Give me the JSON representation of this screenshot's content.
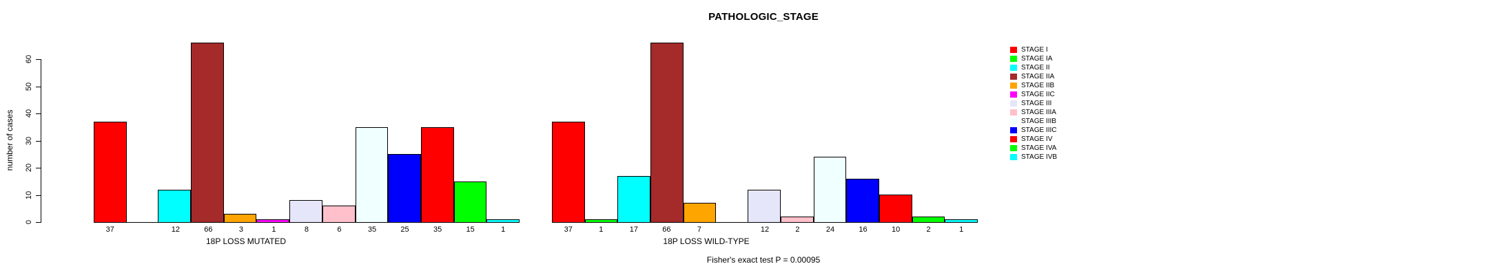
{
  "chart_data": {
    "type": "bar",
    "title": "PATHOLOGIC_STAGE",
    "ylabel": "number of cases",
    "yticks": [
      0,
      10,
      20,
      30,
      40,
      50,
      60
    ],
    "ylim": [
      0,
      66
    ],
    "grid": false,
    "legend_position": "right",
    "categories": [
      "STAGE I",
      "STAGE IA",
      "STAGE II",
      "STAGE IIA",
      "STAGE IIB",
      "STAGE IIC",
      "STAGE III",
      "STAGE IIIA",
      "STAGE IIIB",
      "STAGE IIIC",
      "STAGE IV",
      "STAGE IVA",
      "STAGE IVB"
    ],
    "colors": [
      "#FF0000",
      "#00FF00",
      "#00FFFF",
      "#A52A2A",
      "#FFA500",
      "#FF00FF",
      "#E6E6FA",
      "#FFC0CB",
      "#F0FFFF",
      "#0000FF",
      "#FF0000",
      "#00FF00",
      "#00FFFF"
    ],
    "series": [
      {
        "name": "18P LOSS MUTATED",
        "values": [
          37,
          0,
          12,
          66,
          3,
          1,
          8,
          6,
          35,
          25,
          35,
          15,
          1
        ]
      },
      {
        "name": "18P LOSS WILD-TYPE",
        "values": [
          37,
          1,
          17,
          66,
          7,
          0,
          12,
          2,
          24,
          16,
          10,
          2,
          1
        ]
      }
    ],
    "bar_value_labels": "value printed under each bar; zero-count bars have no label",
    "annotation": "Fisher's exact test P = 0.00095"
  }
}
